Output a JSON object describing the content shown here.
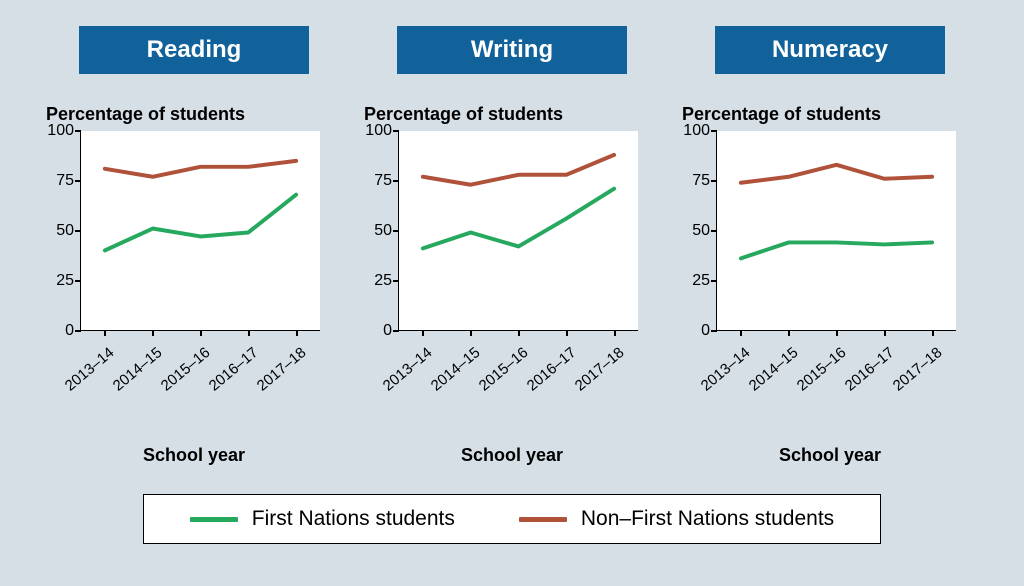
{
  "background_color": "#d6dfe6",
  "plot_background": "#ffffff",
  "axis_color": "#000000",
  "title_bar_color": "#11619b",
  "title_text_color": "#ffffff",
  "line_width": 4,
  "y_axis": {
    "title": "Percentage of students",
    "min": 0,
    "max": 100,
    "ticks": [
      0,
      25,
      50,
      75,
      100
    ]
  },
  "x_axis": {
    "title": "School year",
    "categories": [
      "2013–14",
      "2014–15",
      "2015–16",
      "2016–17",
      "2017–18"
    ]
  },
  "series_colors": {
    "first_nations": "#27a85f",
    "non_first_nations": "#b0513a"
  },
  "legend": {
    "first_nations": "First Nations students",
    "non_first_nations": "Non–First Nations students"
  },
  "panels": [
    {
      "title": "Reading",
      "first_nations": [
        40,
        51,
        47,
        49,
        68
      ],
      "non_first_nations": [
        81,
        77,
        82,
        82,
        85
      ]
    },
    {
      "title": "Writing",
      "first_nations": [
        41,
        49,
        42,
        56,
        71
      ],
      "non_first_nations": [
        77,
        73,
        78,
        78,
        88
      ]
    },
    {
      "title": "Numeracy",
      "first_nations": [
        36,
        44,
        44,
        43,
        44
      ],
      "non_first_nations": [
        74,
        77,
        83,
        76,
        77
      ]
    }
  ]
}
